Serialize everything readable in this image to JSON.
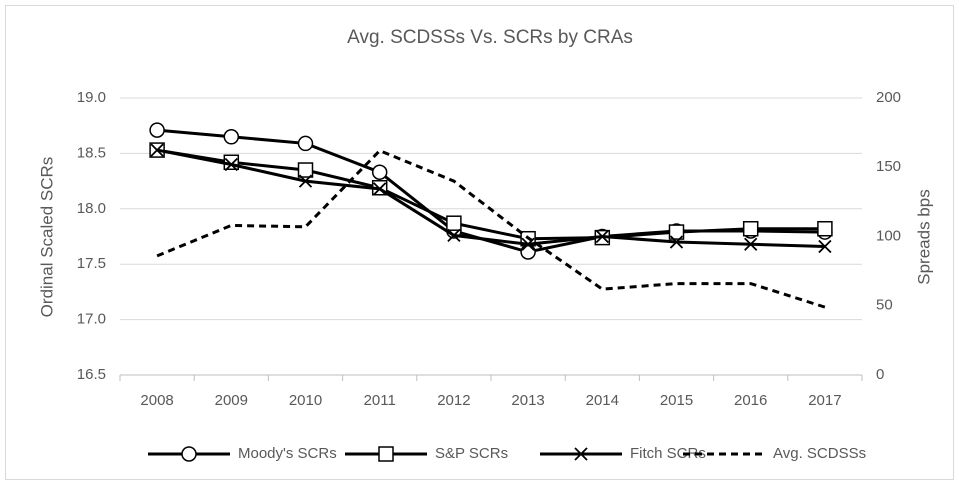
{
  "chart_data": {
    "type": "line",
    "title": "Avg. SCDSSs Vs. SCRs by CRAs",
    "y_label": "Ordinal Scaled SCRs",
    "y2_label": "Spreads bps",
    "categories": [
      "2008",
      "2009",
      "2010",
      "2011",
      "2012",
      "2013",
      "2014",
      "2015",
      "2016",
      "2017"
    ],
    "ylim": [
      16.5,
      19.0
    ],
    "yticks": [
      16.5,
      {
        "value": 17,
        "label": "17.0"
      },
      17.5,
      {
        "value": 18,
        "label": "18.0"
      },
      18.5,
      {
        "value": 19,
        "label": "19.0"
      }
    ],
    "y2lim": [
      0,
      200
    ],
    "y2ticks": [
      0,
      50,
      100,
      150,
      200
    ],
    "grid": true,
    "legend": "bottom",
    "series": [
      {
        "name": "Moody's SCRs",
        "color": "#000000",
        "marker": "circle",
        "dash": false,
        "values": [
          18.71,
          18.65,
          18.59,
          18.33,
          17.8,
          17.61,
          17.75,
          17.8,
          17.8,
          17.79
        ]
      },
      {
        "name": "S&P SCRs",
        "color": "#000000",
        "marker": "square",
        "dash": false,
        "values": [
          18.53,
          18.42,
          18.35,
          18.19,
          17.87,
          17.73,
          17.74,
          17.79,
          17.82,
          17.82
        ]
      },
      {
        "name": "Fitch SCRs",
        "color": "#000000",
        "marker": "x",
        "dash": false,
        "values": [
          18.53,
          18.4,
          18.25,
          18.18,
          17.76,
          17.68,
          17.75,
          17.7,
          17.68,
          17.66
        ]
      },
      {
        "name": "Avg. SCDSSs",
        "color": "#000000",
        "marker": "none",
        "dash": true,
        "axis": "y2",
        "values": [
          86,
          108,
          107,
          162,
          140,
          99,
          62,
          66,
          66,
          49
        ]
      }
    ]
  }
}
